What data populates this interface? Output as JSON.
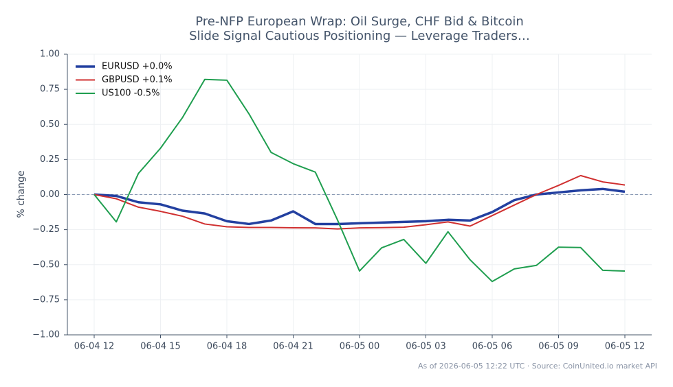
{
  "chart_data": {
    "type": "line",
    "title": [
      "Pre-NFP European Wrap: Oil Surge, CHF Bid & Bitcoin",
      "Slide Signal Cautious Positioning — Leverage Traders…"
    ],
    "y_label": "% change",
    "footnote": "As of 2026-06-05 12:22 UTC · Source: CoinUnited.io market API",
    "categories": [
      "06-04 12",
      null,
      null,
      "06-04 15",
      null,
      null,
      "06-04 18",
      null,
      null,
      "06-04 21",
      null,
      null,
      "06-05 00",
      null,
      null,
      "06-05 03",
      null,
      null,
      "06-05 06",
      null,
      null,
      "06-05 09",
      null,
      null,
      "06-05 12"
    ],
    "series": [
      {
        "name": "EURUSD +0.0%",
        "color": "#2340a0",
        "width": 3.5,
        "values": [
          0,
          -0.01,
          -0.055,
          -0.07,
          -0.115,
          -0.135,
          -0.19,
          -0.21,
          -0.185,
          -0.12,
          -0.21,
          -0.21,
          -0.205,
          -0.2,
          -0.195,
          -0.19,
          -0.18,
          -0.185,
          -0.125,
          -0.04,
          0,
          0.015,
          0.03,
          0.04,
          0.02
        ]
      },
      {
        "name": "GBPUSD +0.1%",
        "color": "#d03030",
        "width": 2,
        "values": [
          0,
          -0.03,
          -0.09,
          -0.12,
          -0.155,
          -0.21,
          -0.23,
          -0.235,
          -0.235,
          -0.237,
          -0.238,
          -0.245,
          -0.238,
          -0.236,
          -0.233,
          -0.215,
          -0.195,
          -0.225,
          -0.15,
          -0.075,
          0,
          0.065,
          0.135,
          0.09,
          0.068
        ]
      },
      {
        "name": "US100 -0.5%",
        "color": "#1f9e4f",
        "width": 2,
        "values": [
          0,
          -0.195,
          0.15,
          0.33,
          0.55,
          0.82,
          0.815,
          0.575,
          0.3,
          0.22,
          0.16,
          -0.18,
          -0.545,
          -0.38,
          -0.32,
          -0.49,
          -0.265,
          -0.465,
          -0.62,
          -0.53,
          -0.505,
          -0.375,
          -0.378,
          -0.54,
          -0.545
        ]
      }
    ],
    "ylim": [
      -1,
      1
    ],
    "yticks": [
      {
        "value": -1,
        "label": "−1.00"
      },
      {
        "value": -0.75,
        "label": "−0.75"
      },
      {
        "value": -0.5,
        "label": "−0.50"
      },
      {
        "value": -0.25,
        "label": "−0.25"
      },
      {
        "value": 0,
        "label": "0.00"
      },
      {
        "value": 0.25,
        "label": "0.25"
      },
      {
        "value": 0.5,
        "label": "0.50"
      },
      {
        "value": 0.75,
        "label": "0.75"
      },
      {
        "value": 1,
        "label": "1.00"
      }
    ],
    "grid": true,
    "zero_line": true,
    "legend": "upper-left"
  }
}
